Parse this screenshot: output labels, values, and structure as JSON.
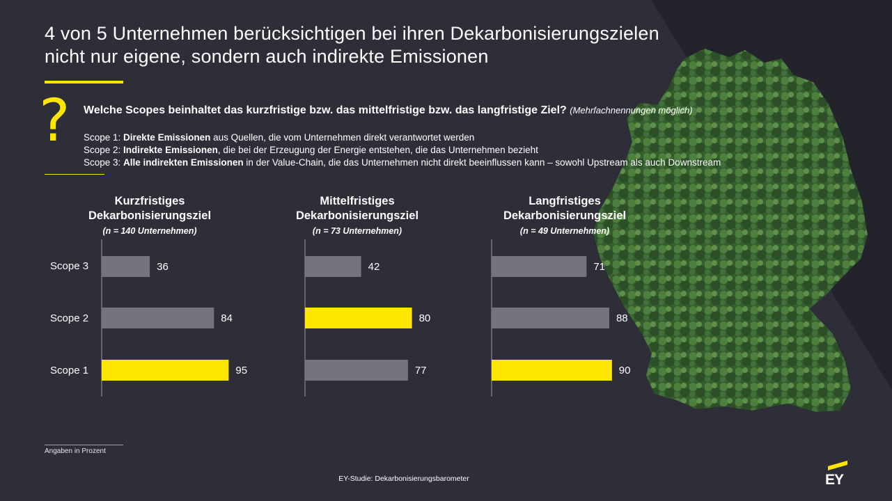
{
  "title": {
    "line1": "4 von 5 Unternehmen berücksichtigen bei ihren Dekarbonisierungszielen",
    "line2": "nicht nur eigene, sondern auch indirekte Emissionen"
  },
  "question": {
    "mark": "?",
    "text": "Welche Scopes beinhaltet das kurzfristige bzw. das mittelfristige bzw. das langfristige Ziel?",
    "note": "(Mehrfachnennungen möglich)"
  },
  "scope_definitions": [
    {
      "prefix": "Scope 1: ",
      "bold": "Direkte Emissionen",
      "rest": " aus Quellen, die vom Unternehmen direkt verantwortet werden"
    },
    {
      "prefix": "Scope 2: ",
      "bold": "Indirekte Emissionen",
      "rest": ", die bei der Erzeugung der Energie entstehen, die das Unternehmen bezieht"
    },
    {
      "prefix": "Scope 3: ",
      "bold": "Alle indirekten Emissionen",
      "rest": " in der Value-Chain, die das Unternehmen nicht direkt beeinflussen kann – sowohl Upstream als auch Downstream"
    }
  ],
  "colors": {
    "background": "#2e2e38",
    "accent": "#ffe600",
    "bar_grey": "#747480",
    "bar_highlight": "#ffe600",
    "map_green": "#3f6b34"
  },
  "chart_data": [
    {
      "type": "bar",
      "orientation": "horizontal",
      "title": "Kurzfristiges Dekarbonisierungsziel",
      "title_line1": "Kurzfristiges",
      "title_line2": "Dekarbonisierungsziel",
      "n_label": "(n = 140 Unternehmen)",
      "categories": [
        "Scope 3",
        "Scope 2",
        "Scope 1"
      ],
      "values": [
        36,
        84,
        95
      ],
      "highlight": [
        false,
        false,
        true
      ],
      "unit": "%",
      "xlim": [
        0,
        100
      ]
    },
    {
      "type": "bar",
      "orientation": "horizontal",
      "title": "Mittelfristiges Dekarbonisierungsziel",
      "title_line1": "Mittelfristiges",
      "title_line2": "Dekarbonisierungsziel",
      "n_label": "(n = 73 Unternehmen)",
      "categories": [
        "Scope 3",
        "Scope 2",
        "Scope 1"
      ],
      "values": [
        42,
        80,
        77
      ],
      "highlight": [
        false,
        true,
        false
      ],
      "unit": "%",
      "xlim": [
        0,
        100
      ]
    },
    {
      "type": "bar",
      "orientation": "horizontal",
      "title": "Langfristiges Dekarbonisierungsziel",
      "title_line1": "Langfristiges",
      "title_line2": "Dekarbonisierungsziel",
      "n_label": "(n = 49 Unternehmen)",
      "categories": [
        "Scope 3",
        "Scope 2",
        "Scope 1"
      ],
      "values": [
        71,
        88,
        90
      ],
      "highlight": [
        false,
        false,
        true
      ],
      "unit": "%",
      "xlim": [
        0,
        100
      ]
    }
  ],
  "footnote": "Angaben in Prozent",
  "source": "EY-Studie: Dekarbonisierungsbarometer",
  "logo": {
    "text": "EY"
  }
}
